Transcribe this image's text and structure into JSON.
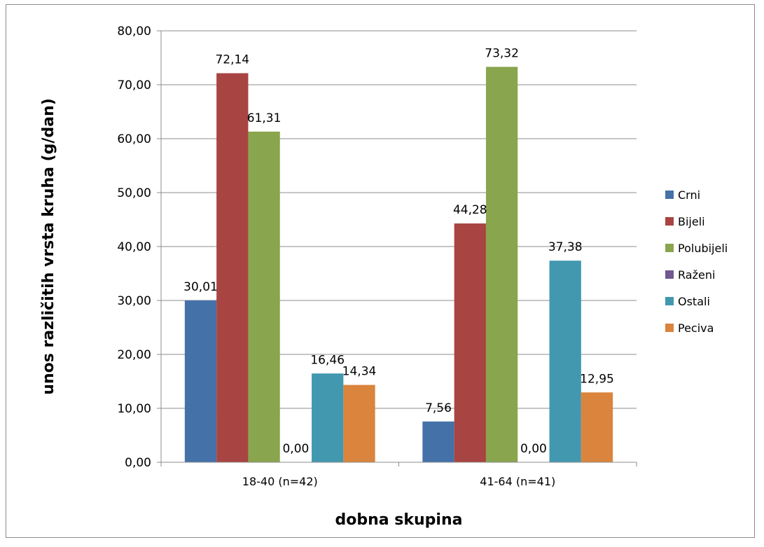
{
  "chart_data": {
    "type": "bar",
    "title": "",
    "xlabel": "dobna skupina",
    "ylabel": "unos različitih vrsta kruha (g/dan)",
    "categories": [
      "18-40 (n=42)",
      "41-64 (n=41)"
    ],
    "series": [
      {
        "name": "Crni",
        "color": "#4571a9",
        "values": [
          30.01,
          7.56
        ],
        "labels": [
          "30,01",
          "7,56"
        ]
      },
      {
        "name": "Bijeli",
        "color": "#a84442",
        "values": [
          72.14,
          44.28
        ],
        "labels": [
          "72,14",
          "44,28"
        ]
      },
      {
        "name": "Polubijeli",
        "color": "#89a54e",
        "values": [
          61.31,
          73.32
        ],
        "labels": [
          "61,31",
          "73,32"
        ]
      },
      {
        "name": "Raženi",
        "color": "#71588f",
        "values": [
          0.0,
          0.0
        ],
        "labels": [
          "0,00",
          "0,00"
        ]
      },
      {
        "name": "Ostali",
        "color": "#4198af",
        "values": [
          16.46,
          37.38
        ],
        "labels": [
          "16,46",
          "37,38"
        ]
      },
      {
        "name": "Peciva",
        "color": "#db843d",
        "values": [
          14.34,
          12.95
        ],
        "labels": [
          "14,34",
          "12,95"
        ]
      }
    ],
    "ylim": [
      0,
      80
    ],
    "yticks": [
      "0,00",
      "10,00",
      "20,00",
      "30,00",
      "40,00",
      "50,00",
      "60,00",
      "70,00",
      "80,00"
    ],
    "grid": true,
    "legend_position": "right"
  }
}
